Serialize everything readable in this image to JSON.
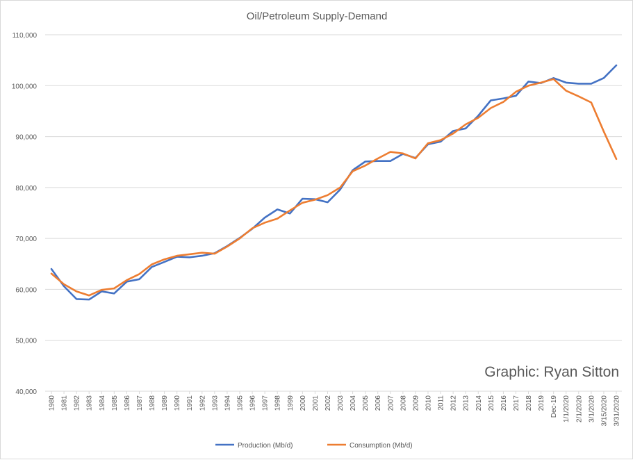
{
  "chart_data": {
    "type": "line",
    "title": "Oil/Petroleum Supply-Demand",
    "xlabel": "",
    "ylabel": "",
    "ylim": [
      40000,
      110000
    ],
    "yticks": [
      "40,000",
      "50,000",
      "60,000",
      "70,000",
      "80,000",
      "90,000",
      "100,000",
      "110,000"
    ],
    "ytick_values": [
      40000,
      50000,
      60000,
      70000,
      80000,
      90000,
      100000,
      110000
    ],
    "grid": true,
    "legend_position": "bottom",
    "annotation": "Graphic: Ryan Sitton",
    "categories": [
      "1980",
      "1981",
      "1982",
      "1983",
      "1984",
      "1985",
      "1986",
      "1987",
      "1988",
      "1989",
      "1990",
      "1991",
      "1992",
      "1993",
      "1994",
      "1995",
      "1996",
      "1997",
      "1998",
      "1999",
      "2000",
      "2001",
      "2002",
      "2003",
      "2004",
      "2005",
      "2006",
      "2007",
      "2008",
      "2009",
      "2010",
      "2011",
      "2012",
      "2013",
      "2014",
      "2015",
      "2016",
      "2017",
      "2018",
      "2019",
      "Dec-19",
      "1/1/2020",
      "2/1/2020",
      "3/1/2020",
      "3/15/2020",
      "3/31/2020"
    ],
    "series": [
      {
        "name": "Production (Mb/d)",
        "color": "#4472c4",
        "values": [
          64000,
          60600,
          58100,
          58000,
          59600,
          59200,
          61500,
          62000,
          64400,
          65400,
          66400,
          66300,
          66600,
          67100,
          68500,
          70100,
          71900,
          74100,
          75700,
          74900,
          77800,
          77700,
          77100,
          79600,
          83400,
          85100,
          85200,
          85200,
          86600,
          85800,
          88500,
          89000,
          91100,
          91600,
          94100,
          97100,
          97500,
          98000,
          100800,
          100500,
          101500,
          100600,
          100400,
          100400,
          101500,
          104000
        ]
      },
      {
        "name": "Consumption (Mb/d)",
        "color": "#ed7d31",
        "values": [
          63100,
          61000,
          59600,
          58800,
          59900,
          60200,
          61800,
          63000,
          64900,
          65900,
          66600,
          66900,
          67200,
          67000,
          68400,
          70000,
          72000,
          73100,
          73900,
          75500,
          77000,
          77600,
          78500,
          80000,
          83200,
          84300,
          85700,
          87000,
          86700,
          85700,
          88700,
          89300,
          90600,
          92400,
          93700,
          95600,
          96800,
          98800,
          100000,
          100600,
          101300,
          99000,
          97900,
          96700,
          91000,
          85600
        ]
      }
    ]
  }
}
